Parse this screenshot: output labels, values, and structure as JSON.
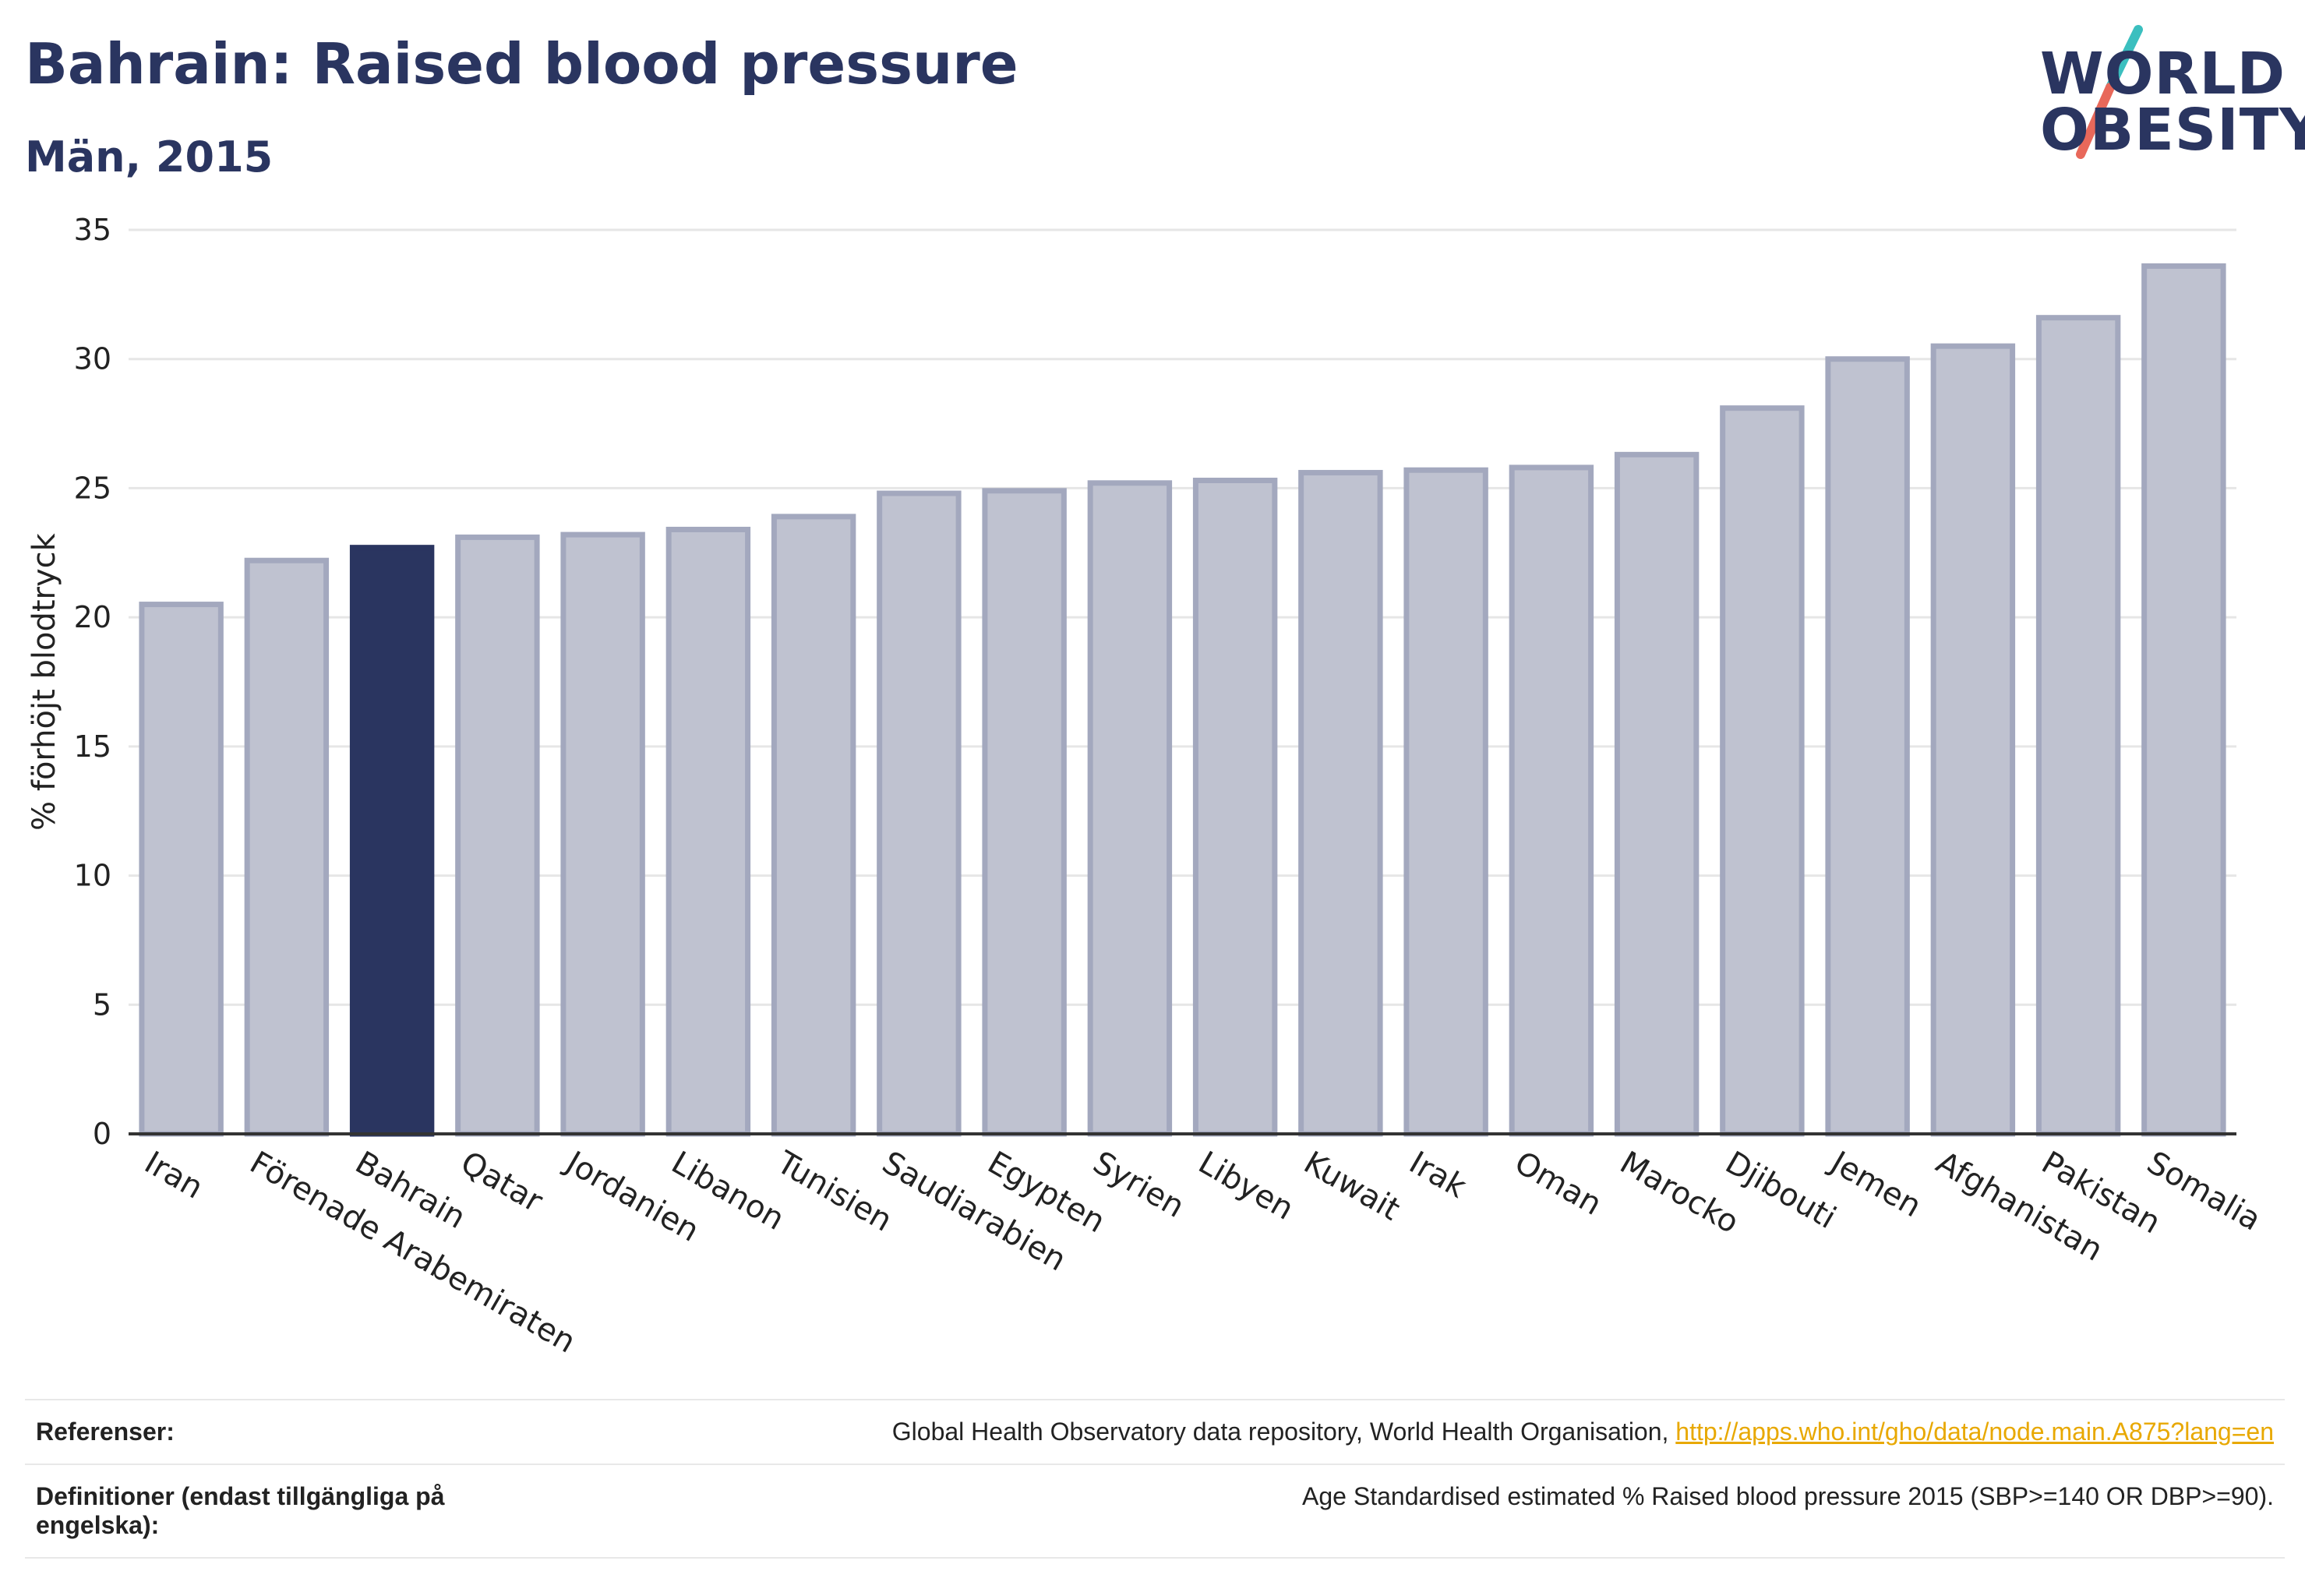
{
  "header": {
    "title": "Bahrain: Raised blood pressure",
    "subtitle": "Män, 2015"
  },
  "logo": {
    "line1": "WORLD",
    "line2": "OBESITY",
    "accent_teal": "#3bbfbf",
    "accent_coral": "#e8685a"
  },
  "colors": {
    "bar_default": "#bfc2d0",
    "bar_default_border": "#a3a8be",
    "bar_highlight": "#2a3560",
    "grid": "#e6e6e6",
    "axis": "#333333"
  },
  "chart_data": {
    "type": "bar",
    "ylabel": "% förhöjt blodtryck",
    "ylim": [
      0,
      35
    ],
    "yticks": [
      0,
      5,
      10,
      15,
      20,
      25,
      30,
      35
    ],
    "grid": true,
    "highlight": "Bahrain",
    "categories": [
      "Iran",
      "Förenade Arabemiraten",
      "Bahrain",
      "Qatar",
      "Jordanien",
      "Libanon",
      "Tunisien",
      "Saudiarabien",
      "Egypten",
      "Syrien",
      "Libyen",
      "Kuwait",
      "Irak",
      "Oman",
      "Marocko",
      "Djibouti",
      "Jemen",
      "Afghanistan",
      "Pakistan",
      "Somalia"
    ],
    "values": [
      20.5,
      22.2,
      22.7,
      23.1,
      23.2,
      23.4,
      23.9,
      24.8,
      24.9,
      25.2,
      25.3,
      25.6,
      25.7,
      25.8,
      26.3,
      28.1,
      30.0,
      30.5,
      31.6,
      33.6
    ]
  },
  "references": {
    "ref_label": "Referenser:",
    "ref_text": "Global Health Observatory data repository, World Health Organisation, ",
    "ref_link": "http://apps.who.int/gho/data/node.main.A875?lang=en",
    "def_label": "Definitioner (endast tillgängliga på engelska):",
    "def_text": "Age Standardised estimated % Raised blood pressure 2015 (SBP>=140 OR DBP>=90)."
  }
}
